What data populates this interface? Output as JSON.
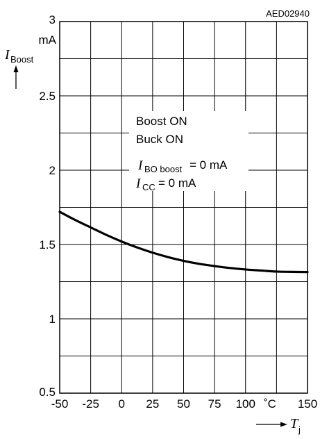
{
  "chart_data": {
    "type": "line",
    "figure_code": "AED02940",
    "xlabel": {
      "symbol": "T",
      "subscript": "j"
    },
    "ylabel": {
      "symbol": "I",
      "subscript": "Boost"
    },
    "y_unit": "mA",
    "x_unit": "˚C",
    "xlim": [
      -50,
      150
    ],
    "ylim": [
      0.5,
      3
    ],
    "x_ticks": [
      "-50",
      "-25",
      "0",
      "25",
      "50",
      "75",
      "100",
      "150"
    ],
    "y_ticks": [
      "3",
      "2.5",
      "2",
      "1.5",
      "1",
      "0.5"
    ],
    "grid": true,
    "annotations": {
      "line1": "Boost ON",
      "line2": "Buck ON",
      "cond1": {
        "symbol": "I",
        "subscript": "BO boost",
        "value": "= 0 mA"
      },
      "cond2": {
        "symbol": "I",
        "subscript": "CC",
        "value": "= 0 mA"
      }
    },
    "series": [
      {
        "x": [
          -50,
          -37.5,
          -25,
          -12.5,
          0,
          12.5,
          25,
          37.5,
          50,
          62.5,
          75,
          87.5,
          100,
          112.5,
          125,
          137.5,
          150
        ],
        "y": [
          1.72,
          1.665,
          1.615,
          1.565,
          1.52,
          1.48,
          1.445,
          1.415,
          1.39,
          1.37,
          1.355,
          1.342,
          1.332,
          1.325,
          1.318,
          1.316,
          1.315
        ]
      }
    ]
  }
}
